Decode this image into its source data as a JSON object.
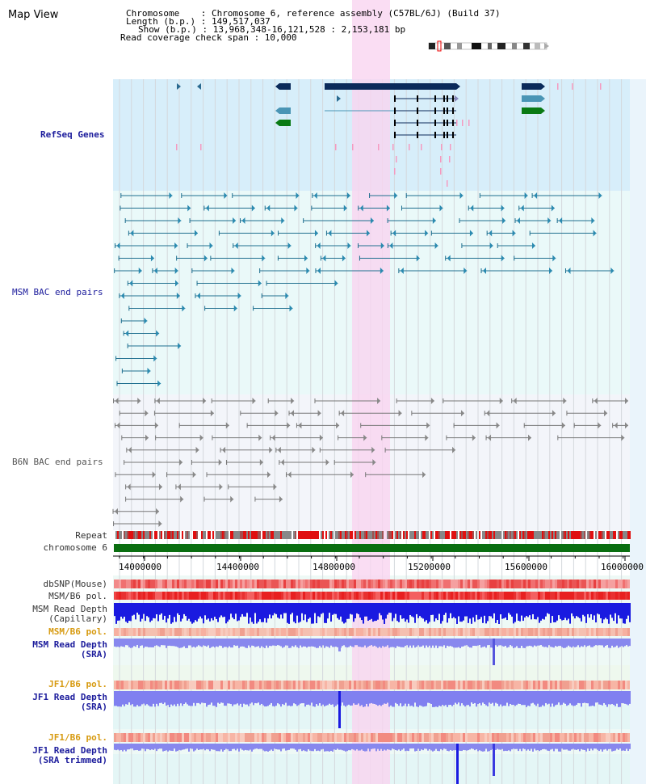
{
  "title": "Map View",
  "info": {
    "chromosome": "Chromosome    : Chromosome 6, reference assembly (C57BL/6J) (Build 37)",
    "length": "Length (b.p.) : 149,517,037",
    "show": "Show (b.p.) : 13,968,348-16,121,528 : 2,153,181 bp",
    "coverage": "Read coverage check span : 10,000"
  },
  "tracks": {
    "refseq": "RefSeq Genes",
    "msm_bac": "MSM BAC end pairs",
    "b6n_bac": "B6N BAC end pairs",
    "repeat": "Repeat",
    "chromosome": "chromosome 6"
  },
  "axis": {
    "ticks": [
      "14000000",
      "14400000",
      "14800000",
      "15200000",
      "15600000",
      "16000000"
    ]
  },
  "lower_tracks": {
    "dbsnp": "dbSNP(Mouse)",
    "msm_b6_pol_1": "MSM/B6 pol.",
    "msm_read_depth_cap_1": "MSM Read Depth",
    "msm_read_depth_cap_2": "(Capillary)",
    "msm_b6_pol_2": "MSM/B6 pol.",
    "msm_read_depth_sra_1": "MSM Read Depth",
    "msm_read_depth_sra_2": "(SRA)",
    "jf1_b6_pol_1": "JF1/B6 pol.",
    "jf1_read_depth_sra_1": "JF1 Read Depth",
    "jf1_read_depth_sra_2": "(SRA)",
    "jf1_b6_pol_2": "JF1/B6 pol.",
    "jf1_read_depth_trim_1": "JF1 Read Depth",
    "jf1_read_depth_trim_2": "(SRA trimmed)"
  },
  "colors": {
    "highlight": "#f7d6f0",
    "refseq_bg": "#d7eefa",
    "msm_bg": "#eaf9f9",
    "b6n_bg": "#f3f5fa",
    "gene_dark": "#0b2a5a",
    "gene_teal": "#4a95b5",
    "gene_green": "#0a7a14",
    "msm_line": "#1f6f8f",
    "b6n_line": "#777777",
    "depth_dark": "#1a1ae0",
    "depth_light": "#8888ee"
  }
}
